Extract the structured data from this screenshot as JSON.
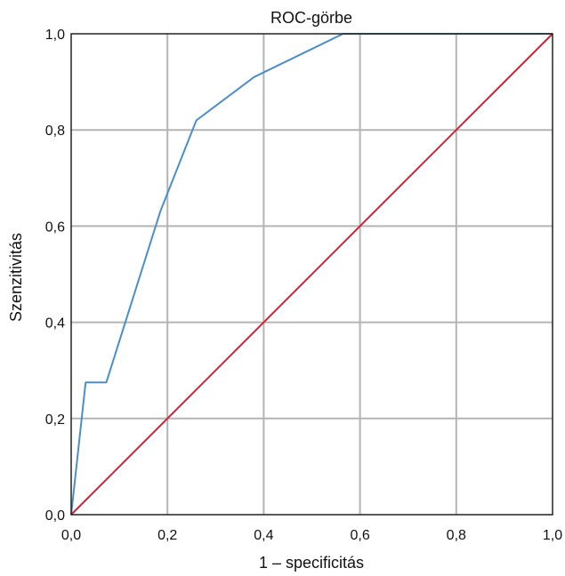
{
  "chart_data": {
    "type": "line",
    "title": "ROC-görbe",
    "xlabel": "1 – specificitás",
    "ylabel": "Szenzitivitás",
    "xlim": [
      0,
      1
    ],
    "ylim": [
      0,
      1
    ],
    "grid": true,
    "x_ticks": [
      "0,0",
      "0,2",
      "0,4",
      "0,6",
      "0,8",
      "1,0"
    ],
    "y_ticks": [
      "0,0",
      "0,2",
      "0,4",
      "0,6",
      "0,8",
      "1,0"
    ],
    "series": [
      {
        "color": "#4a8fc9",
        "points": [
          [
            0.0,
            0.0
          ],
          [
            0.03,
            0.275
          ],
          [
            0.073,
            0.275
          ],
          [
            0.185,
            0.63
          ],
          [
            0.26,
            0.82
          ],
          [
            0.38,
            0.91
          ],
          [
            0.565,
            1.0
          ],
          [
            1.0,
            1.0
          ]
        ]
      },
      {
        "color": "#d0243a",
        "points": [
          [
            0.0,
            0.0
          ],
          [
            1.0,
            1.0
          ]
        ]
      }
    ]
  }
}
